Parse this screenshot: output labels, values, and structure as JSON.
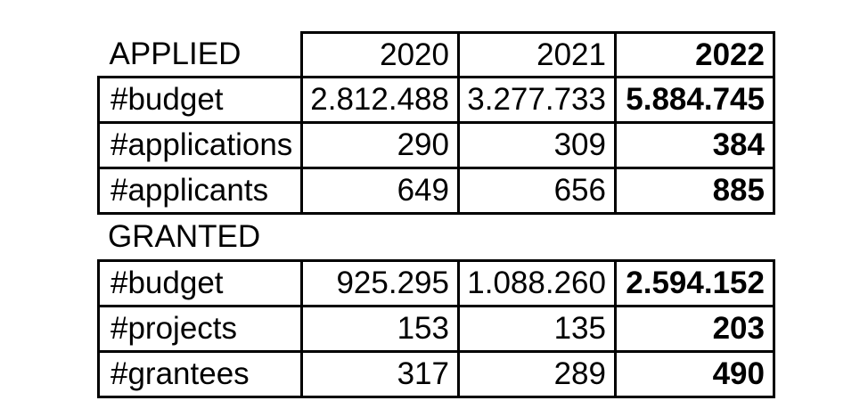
{
  "colors": {
    "border": "#000000",
    "text": "#000000",
    "background": "#ffffff"
  },
  "table": {
    "sections": [
      {
        "title": "APPLIED",
        "col_headers": [
          "2020",
          "2021",
          "2022"
        ],
        "rows": [
          {
            "label": "#budget",
            "values": [
              "2.812.488",
              "3.277.733",
              "5.884.745"
            ]
          },
          {
            "label": "#applications",
            "values": [
              "290",
              "309",
              "384"
            ]
          },
          {
            "label": "#applicants",
            "values": [
              "649",
              "656",
              "885"
            ]
          }
        ]
      },
      {
        "title": "GRANTED",
        "rows": [
          {
            "label": "#budget",
            "values": [
              "925.295",
              "1.088.260",
              "2.594.152"
            ]
          },
          {
            "label": "#projects",
            "values": [
              "153",
              "135",
              "203"
            ]
          },
          {
            "label": "#grantees",
            "values": [
              "317",
              "289",
              "490"
            ]
          }
        ]
      }
    ]
  }
}
